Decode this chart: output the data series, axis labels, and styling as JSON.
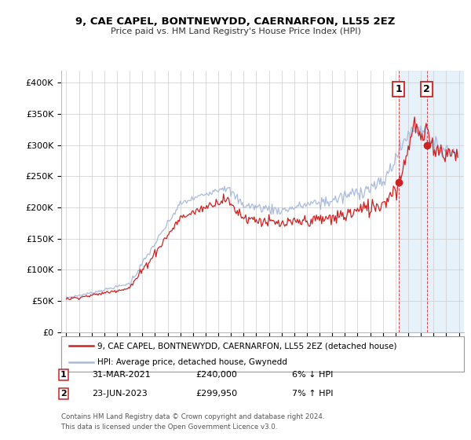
{
  "title": "9, CAE CAPEL, BONTNEWYDD, CAERNARFON, LL55 2EZ",
  "subtitle": "Price paid vs. HM Land Registry's House Price Index (HPI)",
  "ylim": [
    0,
    420000
  ],
  "yticks": [
    0,
    50000,
    100000,
    150000,
    200000,
    250000,
    300000,
    350000,
    400000
  ],
  "ytick_labels": [
    "£0",
    "£50K",
    "£100K",
    "£150K",
    "£200K",
    "£250K",
    "£300K",
    "£350K",
    "£400K"
  ],
  "hpi_color": "#aabbdd",
  "price_color": "#cc2222",
  "shade_color": "#d0e4f7",
  "marker1_date": 2021.25,
  "marker1_price": 240000,
  "marker2_date": 2023.47,
  "marker2_price": 299950,
  "legend_line1": "9, CAE CAPEL, BONTNEWYDD, CAERNARFON, LL55 2EZ (detached house)",
  "legend_line2": "HPI: Average price, detached house, Gwynedd",
  "footer1": "Contains HM Land Registry data © Crown copyright and database right 2024.",
  "footer2": "This data is licensed under the Open Government Licence v3.0.",
  "background_color": "#ffffff",
  "grid_color": "#cccccc",
  "xmin": 1994.6,
  "xmax": 2026.4
}
